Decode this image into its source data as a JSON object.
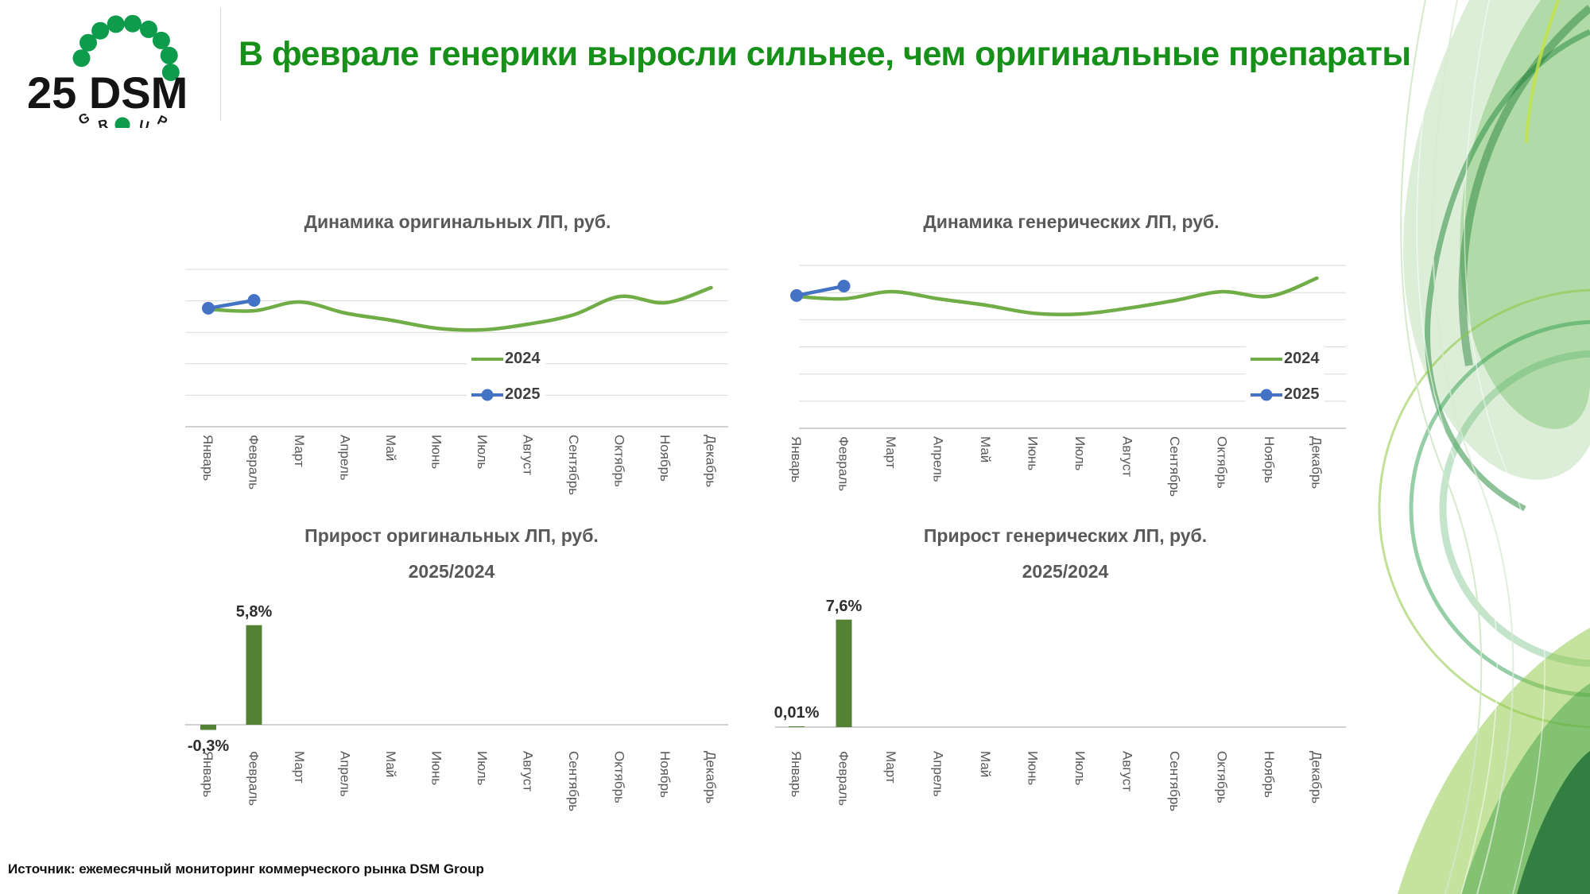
{
  "slide": {
    "title": "В феврале генерики выросли сильнее, чем оригинальные препараты",
    "source": "Источник: ежемесячный мониторинг коммерческого рынка DSM Group",
    "logo": {
      "text": "25 DSM",
      "group_letters": [
        "G",
        "R",
        "U",
        "P"
      ]
    },
    "colors": {
      "title_green": "#17901A",
      "line_green": "#70AD47",
      "marker_blue": "#4472C4",
      "bar_green": "#548235",
      "grid_gray": "#D9D9D9",
      "text_gray": "#595959",
      "logo_green": "#0E9B4C"
    }
  },
  "months": [
    "Январь",
    "Февраль",
    "Март",
    "Апрель",
    "Май",
    "Июнь",
    "Июль",
    "Август",
    "Сентябрь",
    "Октябрь",
    "Ноябрь",
    "Декабрь"
  ],
  "chart_data": [
    {
      "type": "line",
      "title": "Динамика оригинальных ЛП, руб.",
      "categories": [
        "Январь",
        "Февраль",
        "Март",
        "Апрель",
        "Май",
        "Июнь",
        "Июль",
        "Август",
        "Сентябрь",
        "Октябрь",
        "Ноябрь",
        "Декабрь"
      ],
      "y_axis_note": "no tick labels shown; values are relative level, % of plot height above axis (estimated from pixels)",
      "gridlines": 6,
      "legend_position": "inside-right",
      "series": [
        {
          "name": "2024",
          "color": "#70AD47",
          "marker": false,
          "values": [
            74.7,
            73.7,
            79.3,
            72.2,
            67.7,
            62.6,
            61.6,
            65.2,
            71.2,
            82.8,
            78.8,
            88.4
          ]
        },
        {
          "name": "2025",
          "color": "#4472C4",
          "marker": true,
          "months_covered": [
            "Январь",
            "Февраль"
          ],
          "values": [
            75.3,
            80.3
          ]
        }
      ]
    },
    {
      "type": "line",
      "title": "Динамика генерических ЛП, руб.",
      "categories": [
        "Январь",
        "Февраль",
        "Март",
        "Апрель",
        "Май",
        "Июнь",
        "Июль",
        "Август",
        "Сентябрь",
        "Октябрь",
        "Ноябрь",
        "Декабрь"
      ],
      "y_axis_note": "no tick labels shown; values are relative level, % of plot height above axis (estimated from pixels)",
      "gridlines": 7,
      "legend_position": "inside-right",
      "series": [
        {
          "name": "2024",
          "color": "#70AD47",
          "marker": false,
          "values": [
            81.0,
            79.5,
            83.9,
            79.5,
            75.6,
            70.7,
            70.2,
            73.7,
            78.5,
            83.9,
            81.0,
            92.2
          ]
        },
        {
          "name": "2025",
          "color": "#4472C4",
          "marker": true,
          "months_covered": [
            "Январь",
            "Февраль"
          ],
          "values": [
            81.5,
            87.3
          ]
        }
      ]
    },
    {
      "type": "bar",
      "title": "Прирост оригинальных ЛП, руб.",
      "subtitle": "2025/2024",
      "color": "#548235",
      "categories": [
        "Январь",
        "Февраль",
        "Март",
        "Апрель",
        "Май",
        "Июнь",
        "Июль",
        "Август",
        "Сентябрь",
        "Октябрь",
        "Ноябрь",
        "Декабрь"
      ],
      "points": [
        {
          "month": "Январь",
          "value": -0.3,
          "label": "-0,3%"
        },
        {
          "month": "Февраль",
          "value": 5.8,
          "label": "5,8%"
        }
      ]
    },
    {
      "type": "bar",
      "title": "Прирост генерических ЛП, руб.",
      "subtitle": "2025/2024",
      "color": "#548235",
      "categories": [
        "Январь",
        "Февраль",
        "Март",
        "Апрель",
        "Май",
        "Июнь",
        "Июль",
        "Август",
        "Сентябрь",
        "Октябрь",
        "Ноябрь",
        "Декабрь"
      ],
      "points": [
        {
          "month": "Январь",
          "value": 0.01,
          "label": "0,01%"
        },
        {
          "month": "Февраль",
          "value": 7.6,
          "label": "7,6%"
        }
      ]
    }
  ]
}
